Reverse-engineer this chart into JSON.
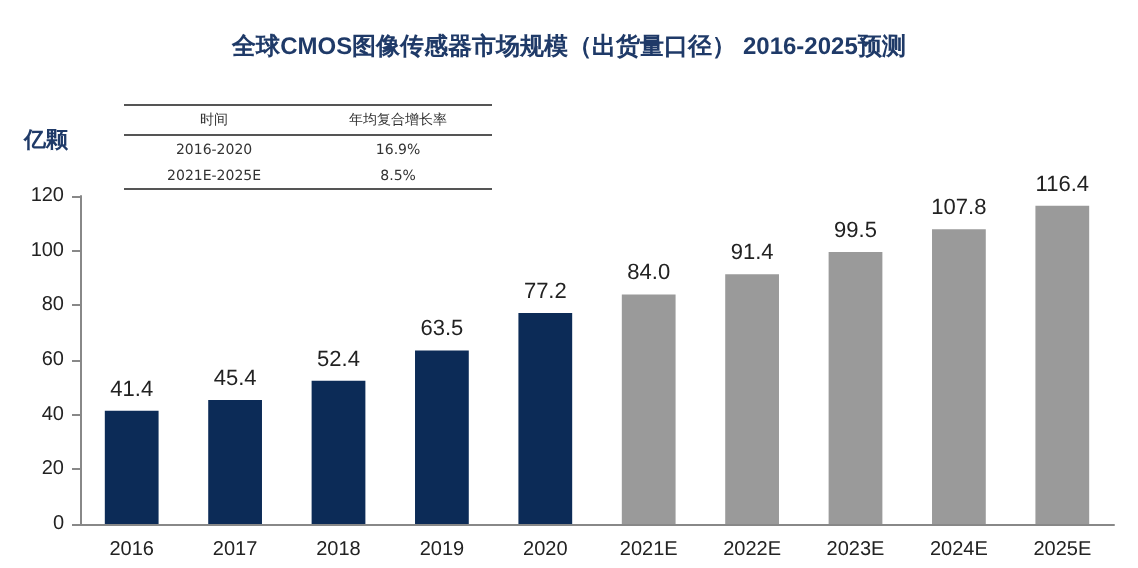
{
  "chart_data": {
    "type": "bar",
    "title": "全球CMOS图像传感器市场规模（出货量口径） 2016-2025预测",
    "ylabel": "亿颗",
    "categories": [
      "2016",
      "2017",
      "2018",
      "2019",
      "2020",
      "2021E",
      "2022E",
      "2023E",
      "2024E",
      "2025E"
    ],
    "values": [
      41.4,
      45.4,
      52.4,
      63.5,
      77.2,
      84.0,
      91.4,
      99.5,
      107.8,
      116.4
    ],
    "value_labels": [
      "41.4",
      "45.4",
      "52.4",
      "63.5",
      "77.2",
      "84.0",
      "91.4",
      "99.5",
      "107.8",
      "116.4"
    ],
    "colors": [
      "#0c2b57",
      "#0c2b57",
      "#0c2b57",
      "#0c2b57",
      "#0c2b57",
      "#9a9a9a",
      "#9a9a9a",
      "#9a9a9a",
      "#9a9a9a",
      "#9a9a9a"
    ],
    "ylim": [
      0,
      120
    ],
    "yticks": [
      0,
      20,
      40,
      60,
      80,
      100,
      120
    ],
    "grid": false,
    "annotations": [
      "时间",
      "年均复合增长率",
      "2016-2020",
      "16.9%",
      "2021E-2025E",
      "8.5%"
    ]
  }
}
